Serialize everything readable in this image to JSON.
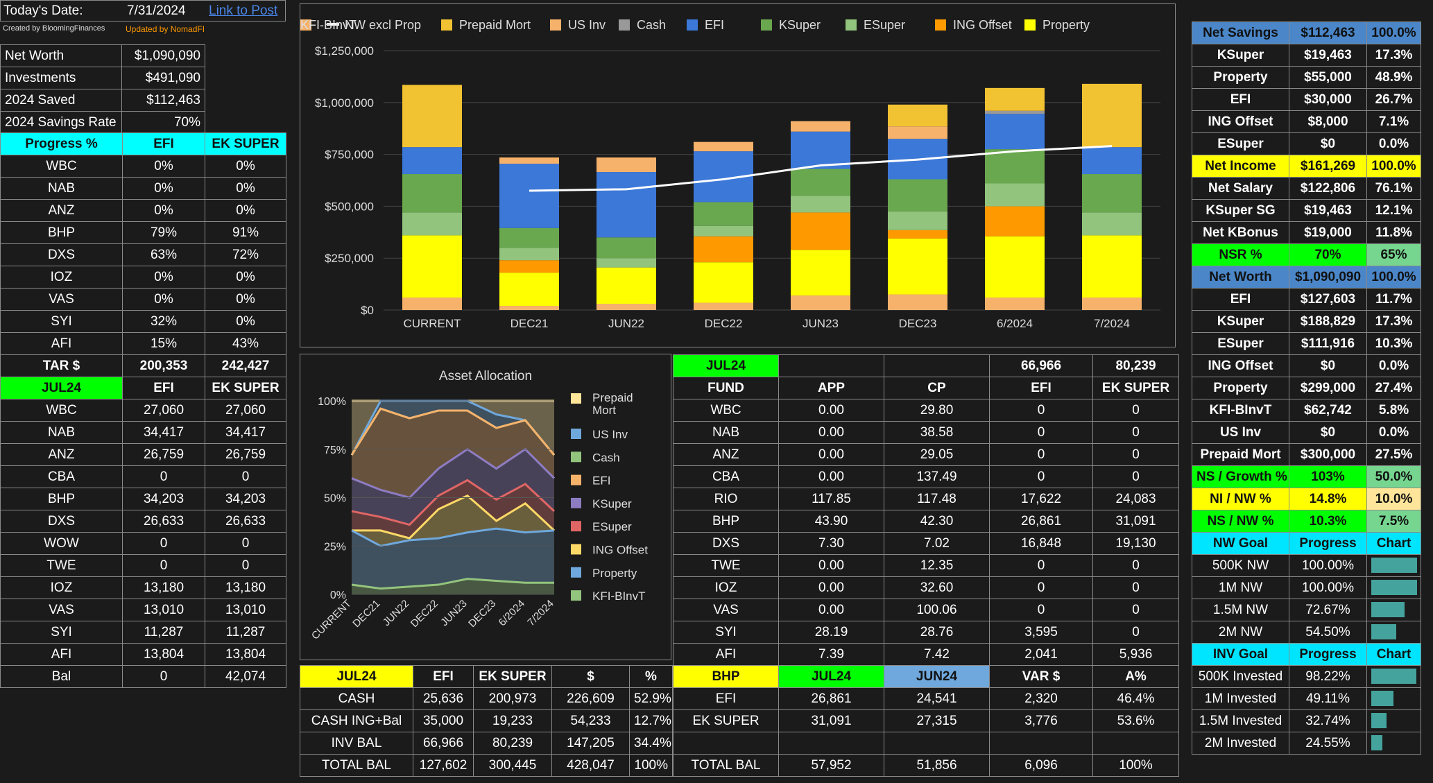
{
  "header": {
    "date_label": "Today's Date:",
    "date_value": "7/31/2024",
    "link_label": "Link to Post",
    "created_by": "Created by BloomingFinances",
    "updated_by": "Updated by NomadFI"
  },
  "summary": [
    {
      "label": "Net Worth",
      "value": "$1,090,090"
    },
    {
      "label": "Investments",
      "value": "$491,090"
    },
    {
      "label": "2024 Saved",
      "value": "$112,463"
    },
    {
      "label": "2024 Savings Rate",
      "value": "70%"
    }
  ],
  "progress": {
    "headers": [
      "Progress %",
      "EFI",
      "EK SUPER"
    ],
    "rows": [
      [
        "WBC",
        "0%",
        "0%"
      ],
      [
        "NAB",
        "0%",
        "0%"
      ],
      [
        "ANZ",
        "0%",
        "0%"
      ],
      [
        "BHP",
        "79%",
        "91%"
      ],
      [
        "DXS",
        "63%",
        "72%"
      ],
      [
        "IOZ",
        "0%",
        "0%"
      ],
      [
        "VAS",
        "0%",
        "0%"
      ],
      [
        "SYI",
        "32%",
        "0%"
      ],
      [
        "AFI",
        "15%",
        "43%"
      ]
    ],
    "tar_row": [
      "TAR $",
      "200,353",
      "242,427"
    ]
  },
  "holdings": {
    "headers": [
      "JUL24",
      "EFI",
      "EK SUPER"
    ],
    "rows": [
      [
        "WBC",
        "27,060",
        "27,060"
      ],
      [
        "NAB",
        "34,417",
        "34,417"
      ],
      [
        "ANZ",
        "26,759",
        "26,759"
      ],
      [
        "CBA",
        "0",
        "0"
      ],
      [
        "BHP",
        "34,203",
        "34,203"
      ],
      [
        "DXS",
        "26,633",
        "26,633"
      ],
      [
        "WOW",
        "0",
        "0"
      ],
      [
        "TWE",
        "0",
        "0"
      ],
      [
        "IOZ",
        "13,180",
        "13,180"
      ],
      [
        "VAS",
        "13,010",
        "13,010"
      ],
      [
        "SYI",
        "11,287",
        "11,287"
      ],
      [
        "AFI",
        "13,804",
        "13,804"
      ]
    ],
    "bal_row": [
      "Bal",
      "0",
      "42,074"
    ]
  },
  "chart_data": [
    {
      "type": "bar",
      "stacked": true,
      "categories": [
        "CURRENT",
        "DEC21",
        "JUN22",
        "DEC22",
        "JUN23",
        "DEC23",
        "6/2024",
        "7/2024"
      ],
      "ylim": [
        0,
        1250000
      ],
      "yticks": [
        "$0",
        "$250,000",
        "$500,000",
        "$750,000",
        "$1,000,000",
        "$1,250,000"
      ],
      "legend": "top",
      "series": [
        {
          "name": "KFI-BInvT",
          "color": "#f6b26b",
          "values": [
            60000,
            20000,
            30000,
            35000,
            70000,
            75000,
            60000,
            60000
          ]
        },
        {
          "name": "Property",
          "color": "#ffff00",
          "values": [
            300000,
            160000,
            175000,
            195000,
            220000,
            270000,
            295000,
            300000
          ]
        },
        {
          "name": "ING Offset",
          "color": "#ff9900",
          "values": [
            0,
            60000,
            0,
            125000,
            180000,
            40000,
            145000,
            0
          ]
        },
        {
          "name": "ESuper",
          "color": "#93c47d",
          "values": [
            110000,
            60000,
            45000,
            50000,
            80000,
            90000,
            110000,
            110000
          ]
        },
        {
          "name": "KSuper",
          "color": "#6aa84f",
          "values": [
            185000,
            95000,
            100000,
            115000,
            130000,
            155000,
            165000,
            185000
          ]
        },
        {
          "name": "EFI",
          "color": "#3c78d8",
          "values": [
            130000,
            310000,
            315000,
            245000,
            180000,
            195000,
            170000,
            130000
          ]
        },
        {
          "name": "Cash",
          "color": "#999999",
          "values": [
            0,
            0,
            0,
            0,
            0,
            0,
            15000,
            0
          ]
        },
        {
          "name": "US Inv",
          "color": "#f6b26b",
          "values": [
            0,
            30000,
            70000,
            45000,
            50000,
            60000,
            0,
            0
          ]
        },
        {
          "name": "Prepaid Mort",
          "color": "#f1c232",
          "values": [
            300000,
            0,
            0,
            0,
            0,
            105000,
            110000,
            305000
          ]
        }
      ],
      "line_series": {
        "name": "NW excl Prop",
        "color": "#ffffff",
        "values": [
          null,
          575000,
          582000,
          630000,
          697000,
          725000,
          765000,
          790000
        ]
      }
    },
    {
      "type": "area",
      "title": "Asset Allocation",
      "categories": [
        "CURRENT",
        "DEC21",
        "JUN22",
        "DEC22",
        "JUN23",
        "DEC23",
        "6/2024",
        "7/2024"
      ],
      "ylim": [
        0,
        1
      ],
      "yticks": [
        "0%",
        "25%",
        "50%",
        "75%",
        "100%"
      ],
      "legend": "right",
      "legend_entries": [
        {
          "name": "Prepaid Mort",
          "color": "#ffe599"
        },
        {
          "name": "US Inv",
          "color": "#6fa8dc"
        },
        {
          "name": "Cash",
          "color": "#93c47d"
        },
        {
          "name": "EFI",
          "color": "#f6b26b"
        },
        {
          "name": "KSuper",
          "color": "#8e7cc3"
        },
        {
          "name": "ESuper",
          "color": "#e06666"
        },
        {
          "name": "ING Offset",
          "color": "#ffd966"
        },
        {
          "name": "Property",
          "color": "#6fa8dc"
        },
        {
          "name": "KFI-BInvT",
          "color": "#93c47d"
        }
      ],
      "series": [
        {
          "name": "KFI-BInvT",
          "color": "#93c47d",
          "values": [
            0.05,
            0.03,
            0.04,
            0.05,
            0.08,
            0.07,
            0.06,
            0.06
          ]
        },
        {
          "name": "Property",
          "color": "#6fa8dc",
          "values": [
            0.33,
            0.25,
            0.28,
            0.29,
            0.32,
            0.34,
            0.32,
            0.33
          ]
        },
        {
          "name": "ING Offset",
          "color": "#ffd966",
          "values": [
            0.33,
            0.33,
            0.29,
            0.44,
            0.51,
            0.38,
            0.47,
            0.33
          ]
        },
        {
          "name": "ESuper",
          "color": "#e06666",
          "values": [
            0.43,
            0.4,
            0.36,
            0.51,
            0.59,
            0.49,
            0.57,
            0.43
          ]
        },
        {
          "name": "KSuper",
          "color": "#8e7cc3",
          "values": [
            0.6,
            0.54,
            0.5,
            0.65,
            0.75,
            0.65,
            0.75,
            0.6
          ]
        },
        {
          "name": "EFI",
          "color": "#f6b26b",
          "values": [
            0.72,
            0.96,
            0.91,
            0.95,
            0.95,
            0.86,
            0.9,
            0.72
          ]
        },
        {
          "name": "Cash",
          "color": "#93c47d",
          "values": [
            0.72,
            0.96,
            0.91,
            0.95,
            0.95,
            0.86,
            0.9,
            0.72
          ]
        },
        {
          "name": "US Inv",
          "color": "#6fa8dc",
          "values": [
            0.72,
            1.0,
            1.0,
            1.0,
            1.0,
            0.93,
            0.9,
            0.72
          ]
        },
        {
          "name": "Prepaid Mort",
          "color": "#ffe599",
          "values": [
            1.0,
            1.0,
            1.0,
            1.0,
            1.0,
            1.0,
            1.0,
            1.0
          ]
        }
      ]
    }
  ],
  "allocation_table": {
    "headers": [
      "JUL24",
      "EFI",
      "EK SUPER",
      "$",
      "%"
    ],
    "rows": [
      [
        "CASH",
        "25,636",
        "200,973",
        "226,609",
        "52.9%"
      ],
      [
        "CASH ING+Bal",
        "35,000",
        "19,233",
        "54,233",
        "12.7%"
      ],
      [
        "INV BAL",
        "66,966",
        "80,239",
        "147,205",
        "34.4%"
      ]
    ],
    "total_row": [
      "TOTAL BAL",
      "127,602",
      "300,445",
      "428,047",
      "100%"
    ]
  },
  "fund_table": {
    "top_row": [
      "JUL24",
      "",
      "",
      "66,966",
      "80,239"
    ],
    "headers": [
      "FUND",
      "APP",
      "CP",
      "EFI",
      "EK SUPER"
    ],
    "rows": [
      [
        "WBC",
        "0.00",
        "29.80",
        "0",
        "0"
      ],
      [
        "NAB",
        "0.00",
        "38.58",
        "0",
        "0"
      ],
      [
        "ANZ",
        "0.00",
        "29.05",
        "0",
        "0"
      ],
      [
        "CBA",
        "0.00",
        "137.49",
        "0",
        "0"
      ],
      [
        "RIO",
        "117.85",
        "117.48",
        "17,622",
        "24,083"
      ],
      [
        "BHP",
        "43.90",
        "42.30",
        "26,861",
        "31,091"
      ],
      [
        "DXS",
        "7.30",
        "7.02",
        "16,848",
        "19,130"
      ],
      [
        "TWE",
        "0.00",
        "12.35",
        "0",
        "0"
      ],
      [
        "IOZ",
        "0.00",
        "32.60",
        "0",
        "0"
      ],
      [
        "VAS",
        "0.00",
        "100.06",
        "0",
        "0"
      ],
      [
        "SYI",
        "28.19",
        "28.76",
        "3,595",
        "0"
      ],
      [
        "AFI",
        "7.39",
        "7.42",
        "2,041",
        "5,936"
      ]
    ]
  },
  "bhp_table": {
    "headers": [
      "BHP",
      "JUL24",
      "JUN24",
      "VAR $",
      "A%"
    ],
    "rows": [
      [
        "EFI",
        "26,861",
        "24,541",
        "2,320",
        "46.4%"
      ],
      [
        "EK SUPER",
        "31,091",
        "27,315",
        "3,776",
        "53.6%"
      ],
      [
        "",
        "",
        "",
        "",
        ""
      ]
    ],
    "total_row": [
      "TOTAL BAL",
      "57,952",
      "51,856",
      "6,096",
      "100%"
    ]
  },
  "right_panel": {
    "savings_header": [
      "Net Savings",
      "$112,463",
      "100.0%"
    ],
    "savings_rows": [
      [
        "KSuper",
        "$19,463",
        "17.3%"
      ],
      [
        "Property",
        "$55,000",
        "48.9%"
      ],
      [
        "EFI",
        "$30,000",
        "26.7%"
      ],
      [
        "ING Offset",
        "$8,000",
        "7.1%"
      ],
      [
        "ESuper",
        "$0",
        "0.0%"
      ]
    ],
    "income_header": [
      "Net Income",
      "$161,269",
      "100.0%"
    ],
    "income_rows": [
      [
        "Net Salary",
        "$122,806",
        "76.1%"
      ],
      [
        "KSuper SG",
        "$19,463",
        "12.1%"
      ],
      [
        "Net KBonus",
        "$19,000",
        "11.8%"
      ]
    ],
    "nsr_row": [
      "NSR %",
      "70%",
      "65%"
    ],
    "networth_header": [
      "Net Worth",
      "$1,090,090",
      "100.0%"
    ],
    "networth_rows": [
      [
        "EFI",
        "$127,603",
        "11.7%"
      ],
      [
        "KSuper",
        "$188,829",
        "17.3%"
      ],
      [
        "ESuper",
        "$111,916",
        "10.3%"
      ],
      [
        "ING Offset",
        "$0",
        "0.0%"
      ],
      [
        "Property",
        "$299,000",
        "27.4%"
      ],
      [
        "KFI-BInvT",
        "$62,742",
        "5.8%"
      ],
      [
        "US Inv",
        "$0",
        "0.0%"
      ],
      [
        "Prepaid Mort",
        "$300,000",
        "27.5%"
      ]
    ],
    "ratio_rows": [
      [
        "NS / Growth %",
        "103%",
        "50.0%"
      ],
      [
        "NI / NW %",
        "14.8%",
        "10.0%"
      ],
      [
        "NS / NW %",
        "10.3%",
        "7.5%"
      ]
    ],
    "nw_goal_header": [
      "NW Goal",
      "Progress",
      "Chart"
    ],
    "nw_goals": [
      {
        "label": "500K NW",
        "progress": "100.00%",
        "fraction": 1.0
      },
      {
        "label": "1M NW",
        "progress": "100.00%",
        "fraction": 1.0
      },
      {
        "label": "1.5M NW",
        "progress": "72.67%",
        "fraction": 0.7267
      },
      {
        "label": "2M NW",
        "progress": "54.50%",
        "fraction": 0.545
      }
    ],
    "inv_goal_header": [
      "INV Goal",
      "Progress",
      "Chart"
    ],
    "inv_goals": [
      {
        "label": "500K Invested",
        "progress": "98.22%",
        "fraction": 0.9822
      },
      {
        "label": "1M Invested",
        "progress": "49.11%",
        "fraction": 0.4911
      },
      {
        "label": "1.5M Invested",
        "progress": "32.74%",
        "fraction": 0.3274
      },
      {
        "label": "2M Invested",
        "progress": "24.55%",
        "fraction": 0.2455
      }
    ]
  }
}
